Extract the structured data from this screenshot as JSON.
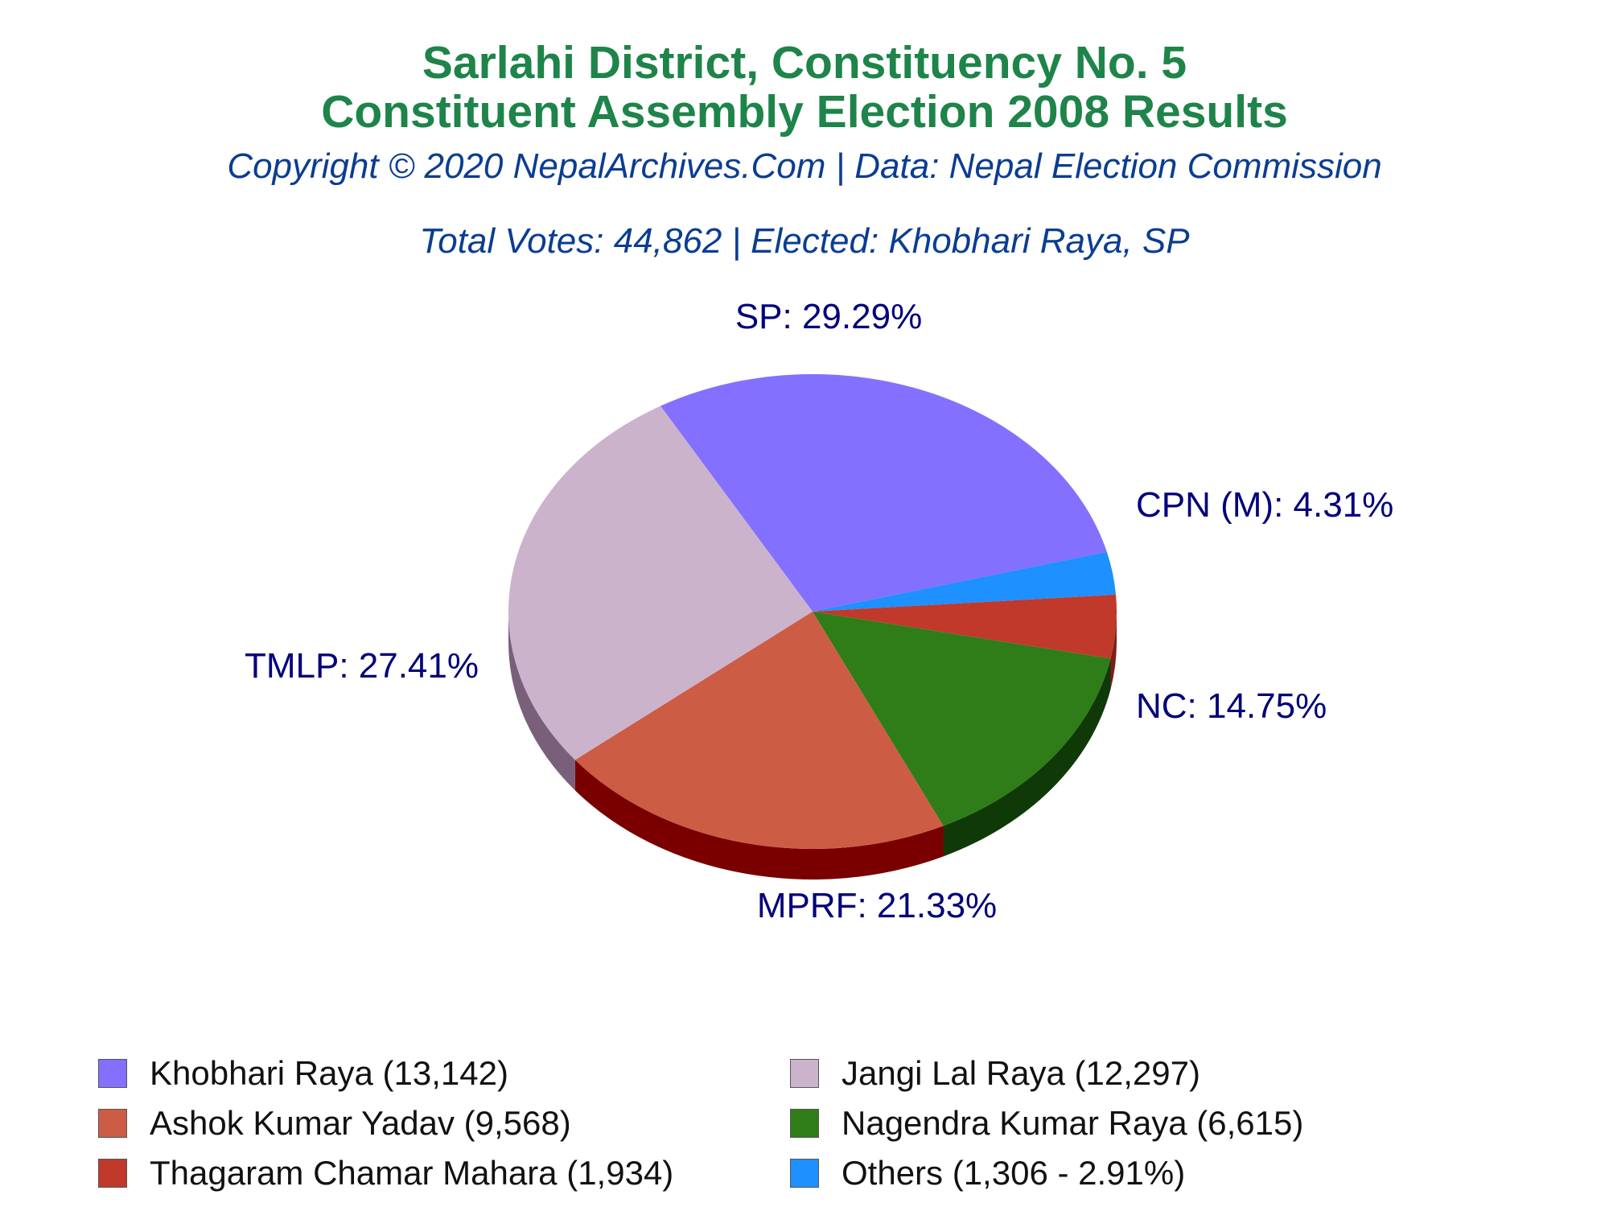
{
  "header": {
    "title_line1": "Sarlahi District, Constituency No. 5",
    "title_line2": "Constituent Assembly Election 2008 Results",
    "copyright": "Copyright © 2020 NepalArchives.Com | Data: Nepal Election Commission",
    "summary": "Total Votes: 44,862 | Elected: Khobhari Raya, SP"
  },
  "colors": {
    "title": "#1e8449",
    "subtitle": "#0b3d91",
    "labels": "#00007a"
  },
  "chart_data": {
    "type": "pie",
    "title": "Sarlahi District, Constituency No. 5 Constituent Assembly Election 2008 Results",
    "total_votes": 44862,
    "slices": [
      {
        "party": "SP",
        "label": "SP: 29.29%",
        "candidate": "Khobhari Raya",
        "votes": 13142,
        "percent": 29.29,
        "color": "#8470ff",
        "side_color": "#5a4db3"
      },
      {
        "party": "Others",
        "label": "",
        "candidate": "Others",
        "votes": 1306,
        "percent": 2.91,
        "color": "#1e90ff",
        "side_color": "#1560b0"
      },
      {
        "party": "CPN (M)",
        "label": "CPN (M): 4.31%",
        "candidate": "Thagaram Chamar Mahara",
        "votes": 1934,
        "percent": 4.31,
        "color": "#c0392b",
        "side_color": "#7a1f18"
      },
      {
        "party": "NC",
        "label": "NC: 14.75%",
        "candidate": "Nagendra Kumar Raya",
        "votes": 6615,
        "percent": 14.75,
        "color": "#2e7d18",
        "side_color": "#0f3a08"
      },
      {
        "party": "MPRF",
        "label": "MPRF: 21.33%",
        "candidate": "Ashok Kumar Yadav",
        "votes": 9568,
        "percent": 21.33,
        "color": "#cd5c45",
        "side_color": "#7a0000"
      },
      {
        "party": "TMLP",
        "label": "TMLP: 27.41%",
        "candidate": "Jangi Lal Raya",
        "votes": 12297,
        "percent": 27.41,
        "color": "#ccb3cc",
        "side_color": "#7a5f7a"
      }
    ],
    "legend": [
      {
        "text": "Khobhari Raya (13,142)",
        "color": "#8470ff"
      },
      {
        "text": "Jangi Lal Raya (12,297)",
        "color": "#ccb3cc"
      },
      {
        "text": "Ashok Kumar Yadav (9,568)",
        "color": "#cd5c45"
      },
      {
        "text": "Nagendra Kumar Raya (6,615)",
        "color": "#2e7d18"
      },
      {
        "text": "Thagaram Chamar Mahara (1,934)",
        "color": "#c0392b"
      },
      {
        "text": "Others (1,306 - 2.91%)",
        "color": "#1e90ff"
      }
    ]
  }
}
